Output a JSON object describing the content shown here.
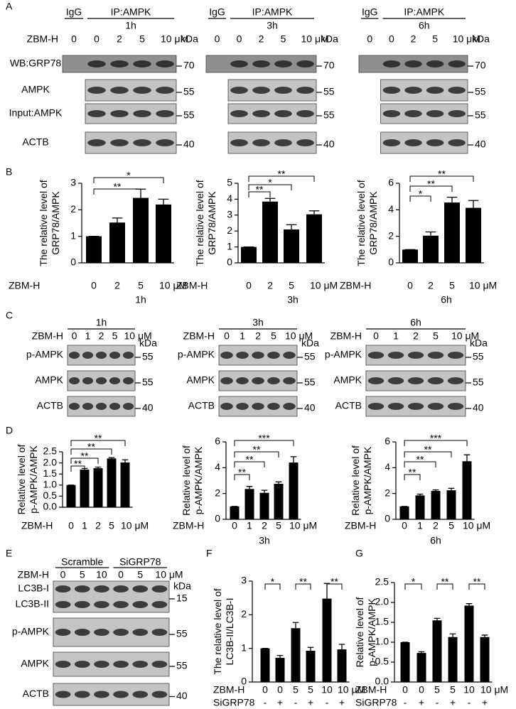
{
  "panel_letters": [
    "A",
    "B",
    "C",
    "D",
    "E",
    "F",
    "G"
  ],
  "blot_panels": [
    [
      {
        "headers": [
          "IgG",
          "IP:AMPK"
        ],
        "time": "1h",
        "treatment_label": "ZBM-H",
        "lanes": [
          "0",
          "0",
          "2",
          "5",
          "10 μM"
        ],
        "unit": "kDa",
        "rows": [
          {
            "labels": [
              "WB:GRP78"
            ],
            "marker": "70"
          },
          {
            "labels": [
              "AMPK"
            ],
            "marker": "55"
          },
          {
            "labels": [
              "Input:AMPK"
            ],
            "marker": "55"
          },
          {
            "labels": [
              "ACTB"
            ],
            "marker": "40"
          }
        ]
      },
      {
        "headers": [
          "IgG",
          "IP:AMPK"
        ],
        "time": "3h",
        "lanes": [
          "0",
          "0",
          "2",
          "5",
          "10 μM"
        ],
        "unit": "kDa",
        "rows": [
          {
            "marker": "70"
          },
          {
            "marker": "55"
          },
          {
            "marker": "55"
          },
          {
            "marker": "40"
          }
        ]
      },
      {
        "headers": [
          "IgG",
          "IP:AMPK"
        ],
        "time": "6h",
        "lanes": [
          "0",
          "0",
          "2",
          "5",
          "10 μM"
        ],
        "unit": "kDa",
        "rows": [
          {
            "marker": "70"
          },
          {
            "marker": "55"
          },
          {
            "marker": "55"
          },
          {
            "marker": "40"
          }
        ]
      }
    ],
    [
      {
        "time": "1h",
        "treatment_label": "ZBM-H",
        "lanes": [
          "0",
          "1",
          "2",
          "5",
          "10 μM"
        ],
        "unit": "kDa",
        "rows": [
          {
            "labels": [
              "p-AMPK"
            ],
            "marker": "55"
          },
          {
            "labels": [
              "AMPK"
            ],
            "marker": "55"
          },
          {
            "labels": [
              "ACTB"
            ],
            "marker": "40"
          }
        ]
      },
      {
        "time": "3h",
        "treatment_label": "ZBM-H",
        "lanes": [
          "0",
          "1",
          "2",
          "5",
          "10 μM"
        ],
        "unit": "kDa",
        "rows": [
          {
            "labels": [
              "p-AMPK"
            ],
            "marker": "55"
          },
          {
            "labels": [
              "AMPK"
            ],
            "marker": "55"
          },
          {
            "labels": [
              "ACTB"
            ],
            "marker": "40"
          }
        ]
      },
      {
        "time": "6h",
        "treatment_label": "ZBM-H",
        "lanes": [
          "0",
          "1",
          "2",
          "5",
          "10 μM"
        ],
        "unit": "kDa",
        "rows": [
          {
            "labels": [
              "p-AMPK"
            ],
            "marker": "55"
          },
          {
            "labels": [
              "AMPK"
            ],
            "marker": "55"
          },
          {
            "labels": [
              "ACTB"
            ],
            "marker": "40"
          }
        ]
      }
    ],
    [
      {
        "headers": [
          "Scramble",
          "SiGRP78"
        ],
        "treatment_label": "ZBM-H",
        "lanes": [
          "0",
          "5",
          "10",
          "0",
          "5",
          "10 μM"
        ],
        "unit": "kDa",
        "rows": [
          {
            "labels": [
              "LC3B-I",
              "LC3B-II"
            ],
            "marker": "15"
          },
          {
            "labels": [
              "p-AMPK"
            ],
            "marker": "55"
          },
          {
            "labels": [
              "AMPK"
            ],
            "marker": "55"
          },
          {
            "labels": [
              "ACTB"
            ],
            "marker": "40"
          }
        ]
      }
    ]
  ],
  "chart_data": [
    {
      "type": "bar",
      "y_label": [
        "The relative level of",
        "GRP78/AMPK"
      ],
      "x_label": "ZBM-H",
      "x_title": "1h",
      "categories": [
        "0",
        "2",
        "5",
        "10 μM"
      ],
      "values": [
        1,
        1.52,
        2.45,
        2.2
      ],
      "errors": [
        0,
        0.17,
        0.33,
        0.2
      ],
      "color": "#000000",
      "ylim": [
        0,
        3
      ],
      "yticks": [
        0,
        1,
        2,
        3
      ],
      "significance": [
        "**",
        "*"
      ]
    },
    {
      "type": "bar",
      "y_label": [
        "The relative level of",
        "GRP78/AMPK"
      ],
      "x_label": "ZBM-H",
      "x_title": "3h",
      "categories": [
        "0",
        "2",
        "5",
        "10 μM"
      ],
      "values": [
        1,
        3.85,
        2.1,
        3.05
      ],
      "errors": [
        0,
        0.2,
        0.3,
        0.22
      ],
      "color": "#000000",
      "ylim": [
        0,
        5
      ],
      "yticks": [
        0,
        1,
        2,
        3,
        4,
        5
      ],
      "significance": [
        "**",
        "*",
        "**"
      ]
    },
    {
      "type": "bar",
      "y_label": [
        "The relative level of",
        "GRP78/AMPK"
      ],
      "x_label": "ZBM-H",
      "x_title": "6h",
      "categories": [
        "0",
        "2",
        "5",
        "10 μM"
      ],
      "values": [
        1,
        2.05,
        4.55,
        4.15
      ],
      "errors": [
        0,
        0.28,
        0.4,
        0.55
      ],
      "color": "#000000",
      "ylim": [
        0,
        6
      ],
      "yticks": [
        0,
        2,
        4,
        6
      ],
      "significance": [
        "*",
        "**",
        "**"
      ]
    },
    {
      "type": "bar",
      "y_label": [
        "Relative level of",
        "p-AMPK/AMPK"
      ],
      "x_label": "ZBM-H",
      "categories": [
        "0",
        "1",
        "2",
        "5",
        "10 μM"
      ],
      "values": [
        1,
        1.7,
        1.76,
        2.2,
        2.02
      ],
      "errors": [
        0,
        0.05,
        0.05,
        0.04,
        0.12
      ],
      "color": "#000000",
      "ylim": [
        0,
        2.5
      ],
      "yticks": [
        {
          "value": 0,
          "label": "0.0"
        },
        0.5,
        {
          "value": 1,
          "label": "1.0"
        },
        1.5,
        {
          "value": 2,
          "label": "2.0"
        },
        2.5
      ],
      "significance": [
        "**",
        "**",
        "**",
        "**"
      ]
    },
    {
      "type": "bar",
      "y_label": [
        "Relative level of",
        "p-AMPK/AMPK"
      ],
      "x_label": "ZBM-H",
      "x_title": "3h",
      "categories": [
        "0",
        "1",
        "2",
        "5",
        "10 μM"
      ],
      "values": [
        1,
        2.35,
        2.05,
        2.75,
        4.4
      ],
      "errors": [
        0,
        0.2,
        0.2,
        0.15,
        0.45
      ],
      "color": "#000000",
      "ylim": [
        0,
        6
      ],
      "yticks": [
        0,
        2,
        4,
        6
      ],
      "significance": [
        "**",
        "**",
        "**",
        "***"
      ]
    },
    {
      "type": "bar",
      "y_label": [
        "Relative level of",
        "p-AMPK/AMPK"
      ],
      "x_label": "ZBM-H",
      "x_title": "6h",
      "categories": [
        "0",
        "1",
        "2",
        "5",
        "10 μM"
      ],
      "values": [
        1,
        1.85,
        2.2,
        2.25,
        4.5
      ],
      "errors": [
        0,
        0.1,
        0.08,
        0.15,
        0.5
      ],
      "color": "#000000",
      "ylim": [
        0,
        6
      ],
      "yticks": [
        0,
        2,
        4,
        6
      ],
      "significance": [
        "**",
        "**",
        "**",
        "***"
      ]
    },
    {
      "type": "bar",
      "y_label": [
        "The relative level of",
        "LC3B-II/LC3B-I"
      ],
      "x_label": "ZBM-H",
      "group_label": "SiGRP78",
      "group_values": [
        "-",
        "+",
        "-",
        "+",
        "-",
        "+"
      ],
      "categories": [
        "0",
        "0",
        "5",
        "5",
        "10",
        "10 μM"
      ],
      "values": [
        1,
        0.72,
        1.6,
        0.93,
        2.48,
        0.97
      ],
      "errors": [
        0,
        0.07,
        0.17,
        0.1,
        0.45,
        0.15
      ],
      "color": "#000000",
      "ylim": [
        0,
        3
      ],
      "yticks": [
        0,
        1,
        2,
        3
      ],
      "significance": [
        "*",
        "**",
        "**"
      ]
    },
    {
      "type": "bar",
      "y_label": [
        "Relative level of",
        "p-AMPK/AMPK"
      ],
      "x_label": "ZBM-H",
      "group_label": "SiGRP78",
      "group_values": [
        "-",
        "+",
        "-",
        "+",
        "-",
        "+"
      ],
      "categories": [
        "0",
        "0",
        "5",
        "5",
        "10",
        "10 μM"
      ],
      "values": [
        1,
        0.73,
        1.55,
        1.13,
        1.92,
        1.13
      ],
      "errors": [
        0,
        0.03,
        0.05,
        0.08,
        0.05,
        0.05
      ],
      "color": "#000000",
      "ylim": [
        0,
        2.5
      ],
      "yticks": [
        {
          "value": 0,
          "label": "0.0"
        },
        0.5,
        {
          "value": 1,
          "label": "1.0"
        },
        1.5,
        {
          "value": 2,
          "label": "2.0"
        },
        2.5
      ],
      "significance": [
        "*",
        "**",
        "**"
      ]
    }
  ]
}
